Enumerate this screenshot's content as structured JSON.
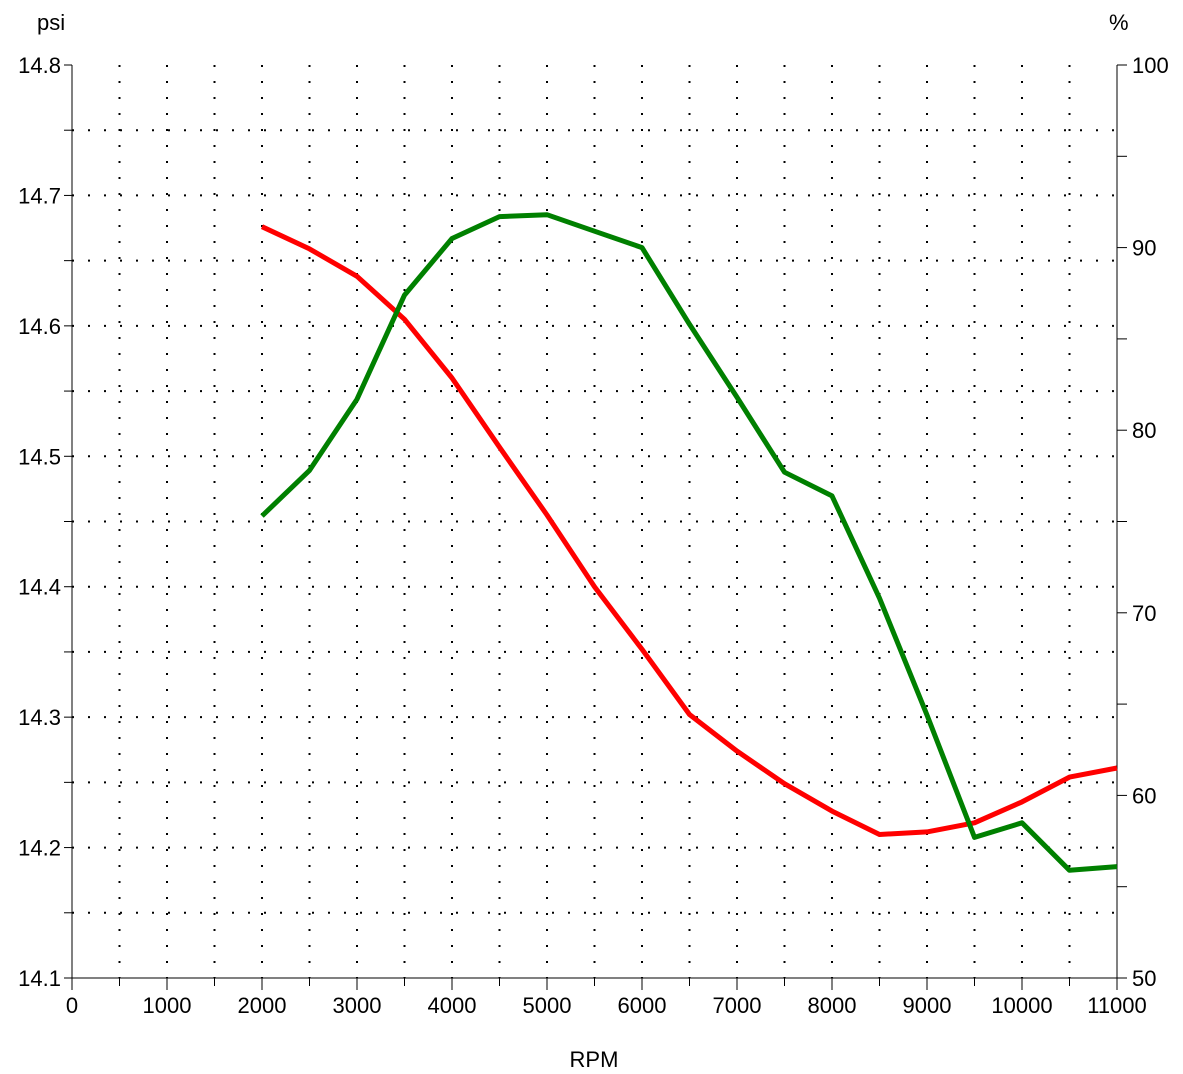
{
  "chart_data": {
    "type": "line",
    "xlabel": "RPM",
    "y_left_unit": "psi",
    "y_right_unit": "%",
    "xlim": [
      0,
      11000
    ],
    "ylim_left": [
      14.1,
      14.8
    ],
    "ylim_right": [
      50,
      100
    ],
    "x_ticks": [
      0,
      1000,
      2000,
      3000,
      4000,
      5000,
      6000,
      7000,
      8000,
      9000,
      10000,
      11000
    ],
    "x_tick_labels": [
      "0",
      "1000",
      "2000",
      "3000",
      "4000",
      "5000",
      "6000",
      "7000",
      "8000",
      "9000",
      "10000",
      "11000"
    ],
    "y_left_ticks": [
      14.1,
      14.2,
      14.3,
      14.4,
      14.5,
      14.6,
      14.7,
      14.8
    ],
    "y_left_tick_labels": [
      "14.1",
      "14.2",
      "14.3",
      "14.4",
      "14.5",
      "14.6",
      "14.7",
      "14.8"
    ],
    "y_right_ticks": [
      50,
      60,
      70,
      80,
      90,
      100
    ],
    "y_right_tick_labels": [
      "50",
      "60",
      "70",
      "80",
      "90",
      "100"
    ],
    "grid": true,
    "series": [
      {
        "axis": "left",
        "color": "#ff0000",
        "x": [
          2000,
          2500,
          3000,
          3500,
          4000,
          4500,
          5000,
          5500,
          6000,
          6500,
          7000,
          7500,
          8000,
          8500,
          9000,
          9500,
          10000,
          10500,
          11000
        ],
        "values": [
          14.676,
          14.659,
          14.638,
          14.605,
          14.56,
          14.507,
          14.455,
          14.4,
          14.352,
          14.302,
          14.274,
          14.249,
          14.228,
          14.21,
          14.212,
          14.219,
          14.235,
          14.254,
          14.261
        ]
      },
      {
        "axis": "right",
        "color": "#008000",
        "x": [
          2000,
          2500,
          3000,
          3500,
          4000,
          4500,
          5000,
          5500,
          6000,
          6500,
          7000,
          7500,
          8000,
          8500,
          9000,
          9500,
          10000,
          10500,
          11000
        ],
        "values": [
          75.3,
          77.8,
          81.7,
          87.4,
          90.5,
          91.7,
          91.8,
          90.9,
          90.0,
          85.8,
          81.8,
          77.7,
          76.4,
          70.8,
          64.4,
          57.7,
          58.5,
          55.9,
          56.1
        ]
      }
    ]
  }
}
